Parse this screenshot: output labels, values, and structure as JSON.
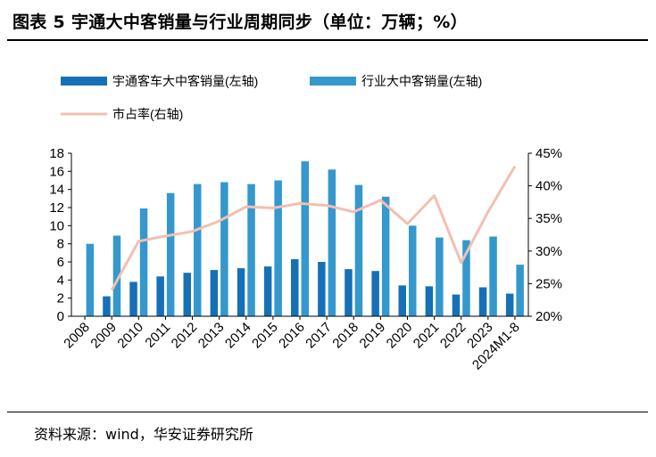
{
  "figure_title": "图表 5  宇通大中客销量与行业周期同步（单位：万辆；%）",
  "source_note": "资料来源：wind，华安证券研究所",
  "chart_data": {
    "type": "bar",
    "categories": [
      "2008",
      "2009",
      "2010",
      "2011",
      "2012",
      "2013",
      "2014",
      "2015",
      "2016",
      "2017",
      "2018",
      "2019",
      "2020",
      "2021",
      "2022",
      "2023",
      "2024M1-8"
    ],
    "series": [
      {
        "name": "宇通客车大中客销量(左轴)",
        "type": "bar",
        "axis": "left",
        "color": "#1670b6",
        "values": [
          null,
          2.2,
          3.8,
          4.4,
          4.8,
          5.1,
          5.3,
          5.5,
          6.3,
          6.0,
          5.2,
          5.0,
          3.4,
          3.3,
          2.4,
          3.2,
          2.5
        ]
      },
      {
        "name": "行业大中客销量(左轴)",
        "type": "bar",
        "axis": "left",
        "color": "#3598cc",
        "values": [
          8.0,
          8.9,
          11.9,
          13.6,
          14.6,
          14.8,
          14.6,
          15.0,
          17.1,
          16.2,
          14.5,
          13.2,
          10.0,
          8.7,
          8.4,
          8.8,
          5.7
        ]
      },
      {
        "name": "市占率(右轴)",
        "type": "line",
        "axis": "right",
        "color": "#f3bfb0",
        "values": [
          null,
          24.0,
          31.5,
          32.3,
          33.0,
          34.6,
          36.8,
          36.6,
          37.3,
          37.0,
          36.0,
          37.8,
          34.2,
          38.5,
          28.2,
          36.0,
          43.0
        ]
      }
    ],
    "y_left": {
      "min": 0,
      "max": 18,
      "step": 2,
      "ticks": [
        "0",
        "2",
        "4",
        "6",
        "8",
        "10",
        "12",
        "14",
        "16",
        "18"
      ]
    },
    "y_right": {
      "min": 20,
      "max": 45,
      "step": 5,
      "ticks": [
        "20%",
        "25%",
        "30%",
        "35%",
        "40%",
        "45%"
      ]
    },
    "grid": false,
    "legend_position": "top-left"
  }
}
